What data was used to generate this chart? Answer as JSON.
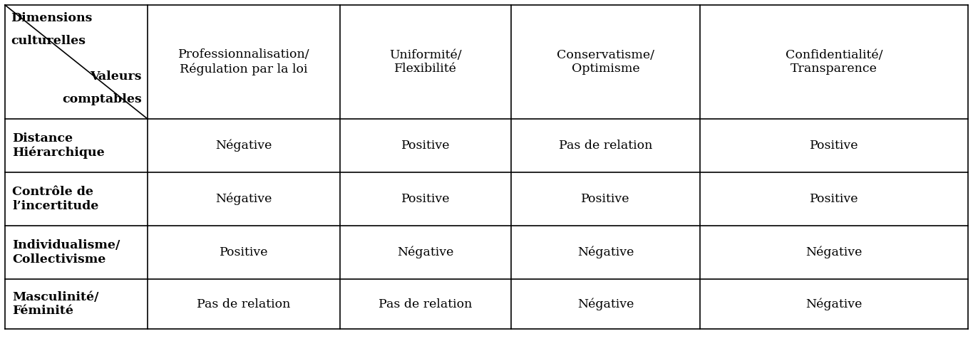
{
  "col_headers": [
    "Professionnalisation/\nRégulation par la loi",
    "Uniformité/\nFlexibilité",
    "Conservatisme/\nOptimisme",
    "Confidentialité/\nTransparence"
  ],
  "row_headers": [
    "Distance\nHiérarchique",
    "Contrôle de\nl’incertitude",
    "Individualisme/\nCollectivisme",
    "Masculinité/\nFéminité"
  ],
  "cell_data": [
    [
      "Négative",
      "Positive",
      "Pas de relation",
      "Positive"
    ],
    [
      "Négative",
      "Positive",
      "Positive",
      "Positive"
    ],
    [
      "Positive",
      "Négative",
      "Négative",
      "Négative"
    ],
    [
      "Pas de relation",
      "Pas de relation",
      "Négative",
      "Négative"
    ]
  ],
  "tl_top_left1": "Dimensions",
  "tl_top_left2": "culturelles",
  "tl_bot_right1": "Valeurs",
  "tl_bot_right2": "comptables",
  "bg_color": "#ffffff",
  "line_color": "#000000",
  "fig_width": 13.65,
  "fig_height": 4.93,
  "dpi": 100
}
